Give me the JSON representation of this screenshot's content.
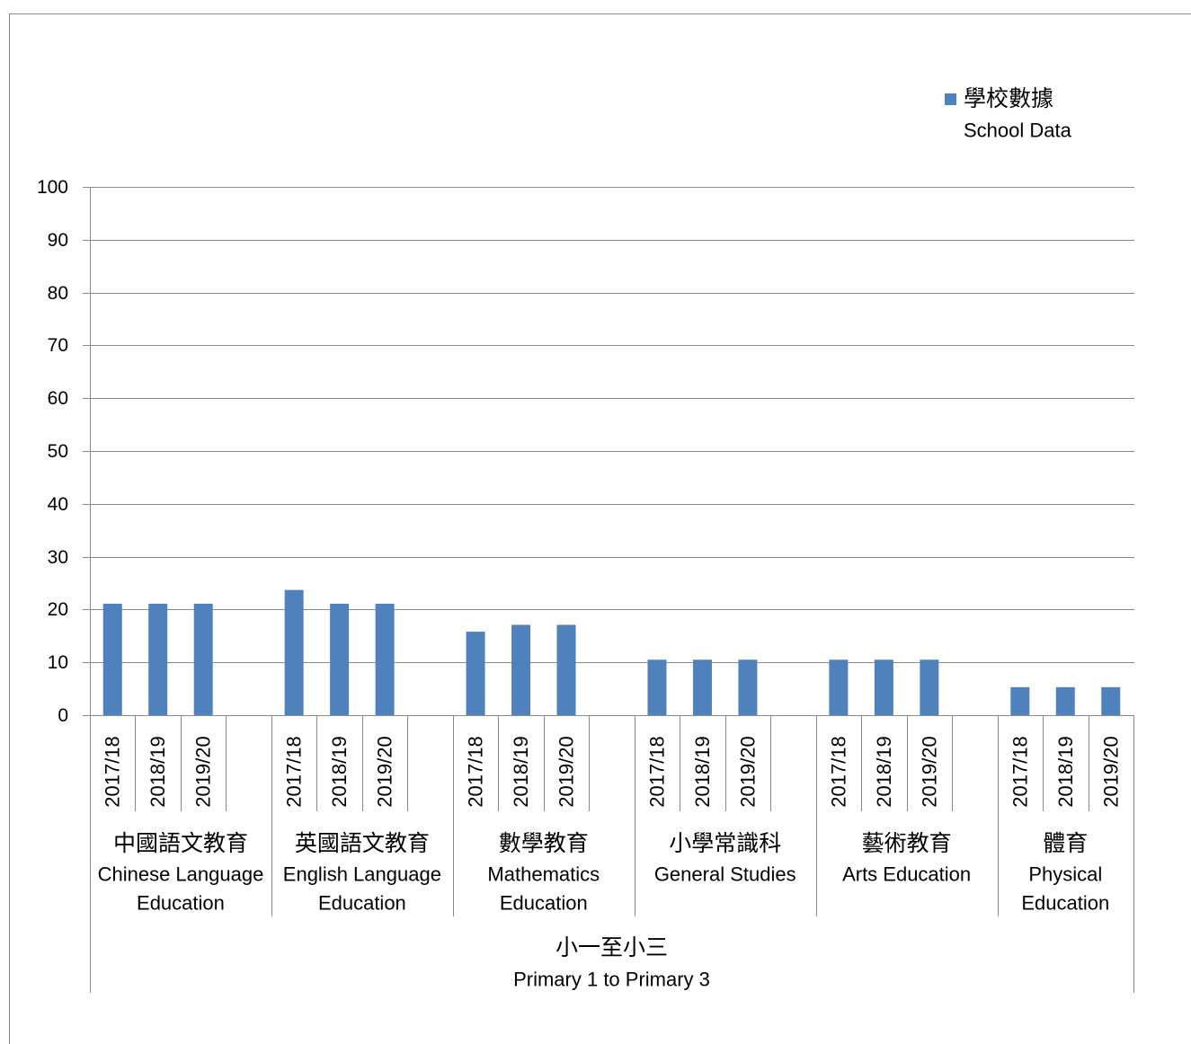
{
  "chart_data": {
    "type": "bar",
    "ylim": [
      0,
      100
    ],
    "yticks": [
      0,
      10,
      20,
      30,
      40,
      50,
      60,
      70,
      80,
      90,
      100
    ],
    "grid": true,
    "legend_position": "top-right",
    "series": [
      {
        "name": "學校數據",
        "name_en": "School Data",
        "color": "#4F81BD"
      }
    ],
    "outer_category": [
      "小一至小三",
      "Primary 1 to Primary 3"
    ],
    "groups": [
      {
        "label": [
          "中國語文教育",
          "Chinese Language",
          "Education"
        ],
        "categories": [
          "2017/18",
          "2018/19",
          "2019/20"
        ],
        "values": [
          21.1,
          21.1,
          21.1
        ]
      },
      {
        "label": [
          "英國語文教育",
          "English Language",
          "Education"
        ],
        "categories": [
          "2017/18",
          "2018/19",
          "2019/20"
        ],
        "values": [
          23.7,
          21.1,
          21.1
        ]
      },
      {
        "label": [
          "數學教育",
          "Mathematics",
          "Education"
        ],
        "categories": [
          "2017/18",
          "2018/19",
          "2019/20"
        ],
        "values": [
          15.8,
          17.1,
          17.1
        ]
      },
      {
        "label": [
          "小學常識科",
          "General Studies"
        ],
        "categories": [
          "2017/18",
          "2018/19",
          "2019/20"
        ],
        "values": [
          10.5,
          10.5,
          10.5
        ]
      },
      {
        "label": [
          "藝術教育",
          "Arts Education"
        ],
        "categories": [
          "2017/18",
          "2018/19",
          "2019/20"
        ],
        "values": [
          10.5,
          10.5,
          10.5
        ]
      },
      {
        "label": [
          "體育",
          "Physical",
          "Education"
        ],
        "categories": [
          "2017/18",
          "2018/19",
          "2019/20"
        ],
        "values": [
          5.3,
          5.3,
          5.3
        ]
      }
    ]
  }
}
